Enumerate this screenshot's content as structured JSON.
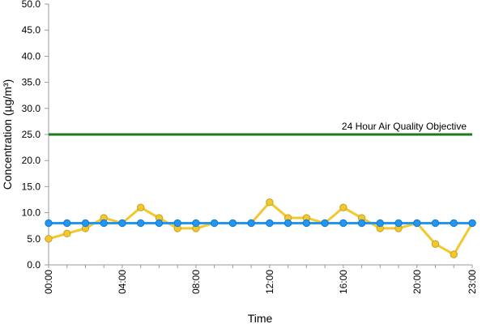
{
  "chart_data": {
    "type": "line",
    "xlabel": "Time",
    "ylabel": "Concentration (µg/m³)",
    "ylim": [
      0,
      50
    ],
    "y_ticks": [
      "0.0",
      "5.0",
      "10.0",
      "15.0",
      "20.0",
      "25.0",
      "30.0",
      "35.0",
      "40.0",
      "45.0",
      "50.0"
    ],
    "x_categories": [
      "00:00",
      "01:00",
      "02:00",
      "03:00",
      "04:00",
      "05:00",
      "06:00",
      "07:00",
      "08:00",
      "09:00",
      "10:00",
      "11:00",
      "12:00",
      "13:00",
      "14:00",
      "15:00",
      "16:00",
      "17:00",
      "18:00",
      "19:00",
      "20:00",
      "21:00",
      "22:00",
      "23:00"
    ],
    "x_tick_labels": [
      "00:00",
      "04:00",
      "08:00",
      "12:00",
      "16:00",
      "20:00",
      "23:00"
    ],
    "x_tick_indices": [
      0,
      4,
      8,
      12,
      16,
      20,
      23
    ],
    "grid": false,
    "series": [
      {
        "values": [
          5,
          6,
          7,
          9,
          8,
          11,
          9,
          7,
          7,
          8,
          8,
          8,
          12,
          9,
          9,
          8,
          11,
          9,
          7,
          7,
          8,
          4,
          2,
          8
        ],
        "color": "#f2c72f",
        "marker_color": "#f2c72f",
        "marker_edge": "#c9a21a"
      },
      {
        "values": [
          8,
          8,
          8,
          8,
          8,
          8,
          8,
          8,
          8,
          8,
          8,
          8,
          8,
          8,
          8,
          8,
          8,
          8,
          8,
          8,
          8,
          8,
          8,
          8
        ],
        "color": "#2196f3",
        "marker_color": "#2196f3",
        "marker_edge": "#1778c8"
      }
    ],
    "reference_line": {
      "label": "24 Hour Air Quality Objective",
      "value": 25,
      "color": "#1f7a1f"
    }
  }
}
